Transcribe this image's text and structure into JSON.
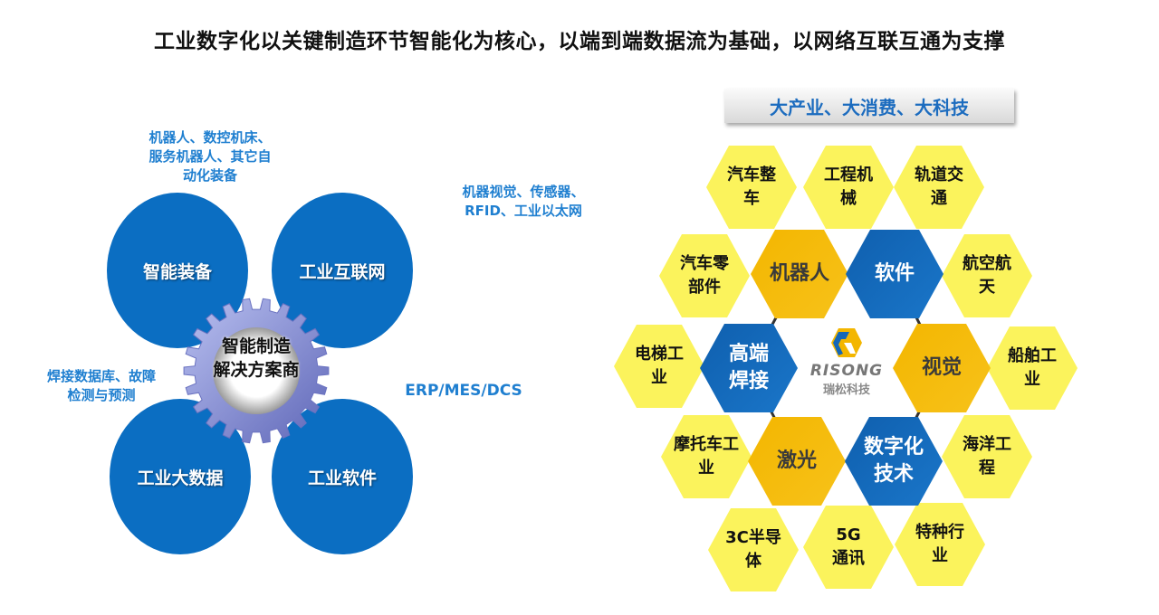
{
  "title": "工业数字化以关键制造环节智能化为核心，以端到端数据流为基础，以网络互联互通为支撑",
  "left": {
    "center": "智能制造\n解决方案商",
    "circles": [
      "智能装备",
      "工业互联网",
      "工业大数据",
      "工业软件"
    ],
    "notes": [
      "机器人、数控机床、\n服务机器人、其它自\n动化装备",
      "机器视觉、传感器、\nRFID、工业以太网",
      "焊接数据库、故障\n检测与预测",
      "ERP/MES/DCS"
    ],
    "colors": {
      "circle": "#0b6ec2",
      "note": "#1f7fd0",
      "gear": "#8c95dc"
    }
  },
  "right": {
    "banner": "大产业、大消费、大科技",
    "logo": {
      "word": "RISONG",
      "cn": "瑞松科技"
    },
    "inner": [
      {
        "label": "机器人",
        "color": "orange"
      },
      {
        "label": "软件",
        "color": "blue"
      },
      {
        "label": "高端\n焊接",
        "color": "blue"
      },
      {
        "label": "视觉",
        "color": "orange"
      },
      {
        "label": "激光",
        "color": "orange"
      },
      {
        "label": "数字化\n技术",
        "color": "blue"
      }
    ],
    "outer": [
      "汽车整\n车",
      "工程机\n械",
      "轨道交\n通",
      "汽车零\n部件",
      "航空航\n天",
      "电梯工\n业",
      "船舶工\n业",
      "摩托车工\n业",
      "海洋工\n程",
      "3C半导\n体",
      "5G\n通讯",
      "特种行\n业"
    ],
    "colors": {
      "outer": "#fbf35c",
      "orange": "#f3b600",
      "blue": "#1467b8"
    }
  }
}
